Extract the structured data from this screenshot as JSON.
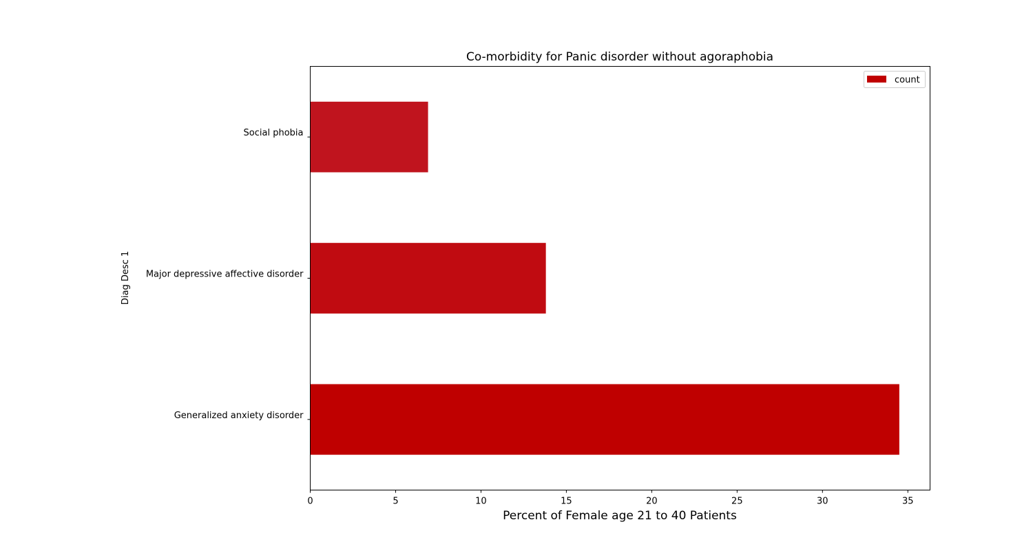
{
  "chart_data": {
    "type": "bar",
    "orientation": "horizontal",
    "title": "Co-morbidity for Panic disorder without agoraphobia",
    "xlabel": "Percent of Female age 21 to 40 Patients",
    "ylabel": "Diag Desc 1",
    "categories": [
      "Generalized anxiety disorder",
      "Major depressive affective disorder",
      "Social phobia"
    ],
    "series": [
      {
        "name": "count",
        "values": [
          34.5,
          13.8,
          6.9
        ],
        "colors": [
          "#bf0000",
          "#c00b11",
          "#c0141e"
        ]
      }
    ],
    "xlim": [
      0,
      36.3
    ],
    "xticks": [
      0,
      5,
      10,
      15,
      20,
      25,
      30,
      35
    ],
    "grid": false,
    "legend": {
      "position": "top-right",
      "entries": [
        "count"
      ],
      "color": "#c00000"
    }
  }
}
